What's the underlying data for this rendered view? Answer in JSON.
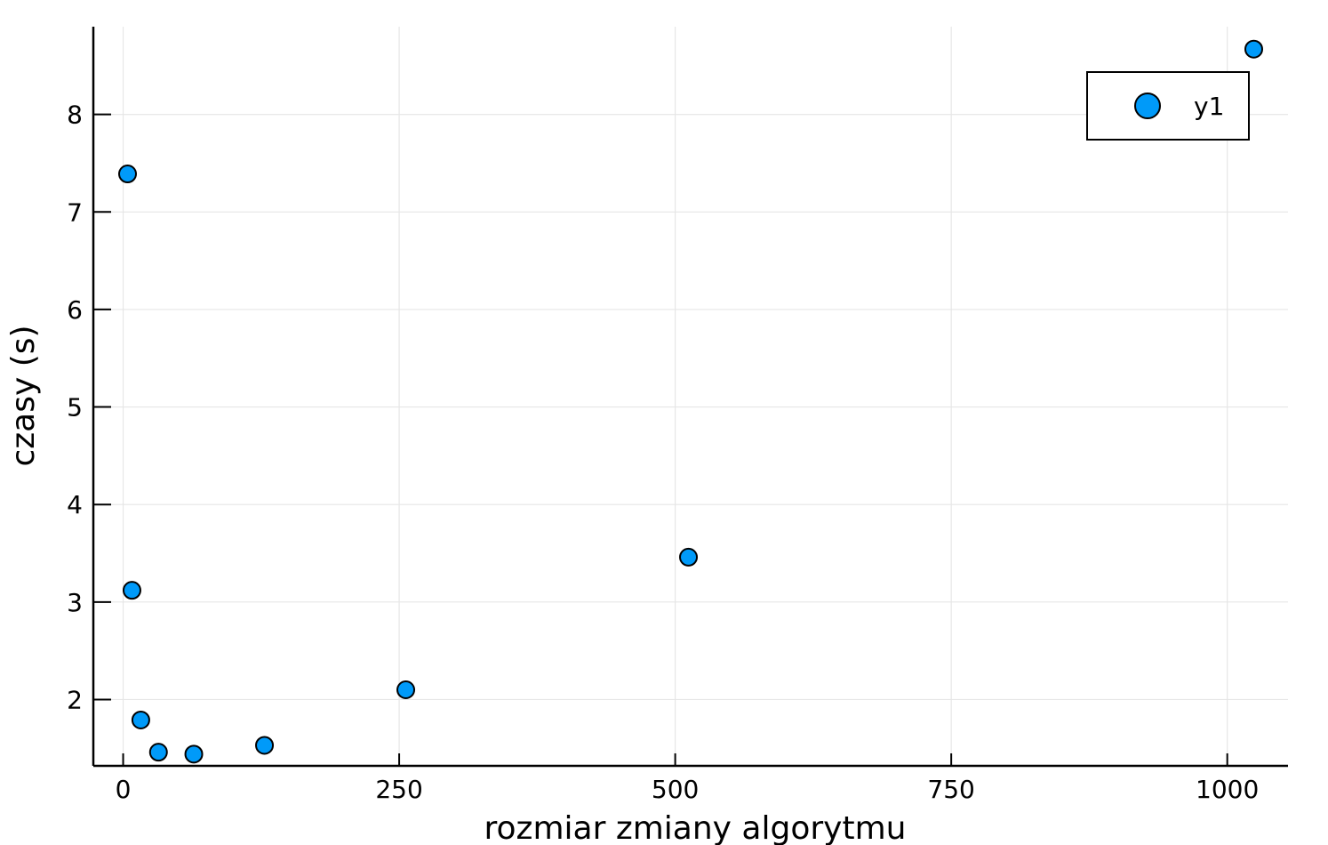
{
  "chart_data": {
    "type": "scatter",
    "title": "",
    "xlabel": "rozmiar zmiany algorytmu",
    "ylabel": "czasy (s)",
    "xlim": [
      -27,
      1055
    ],
    "ylim": [
      1.32,
      8.9
    ],
    "xticks": [
      0,
      250,
      500,
      750,
      1000
    ],
    "yticks": [
      2,
      3,
      4,
      5,
      6,
      7,
      8
    ],
    "grid": true,
    "legend_position": "top-right",
    "series": [
      {
        "name": "y1",
        "color": "#009af9",
        "marker": "circle",
        "x": [
          4,
          8,
          16,
          32,
          64,
          128,
          256,
          512,
          1024
        ],
        "y": [
          7.39,
          3.12,
          1.79,
          1.46,
          1.44,
          1.53,
          2.1,
          3.46,
          8.67
        ]
      }
    ]
  }
}
